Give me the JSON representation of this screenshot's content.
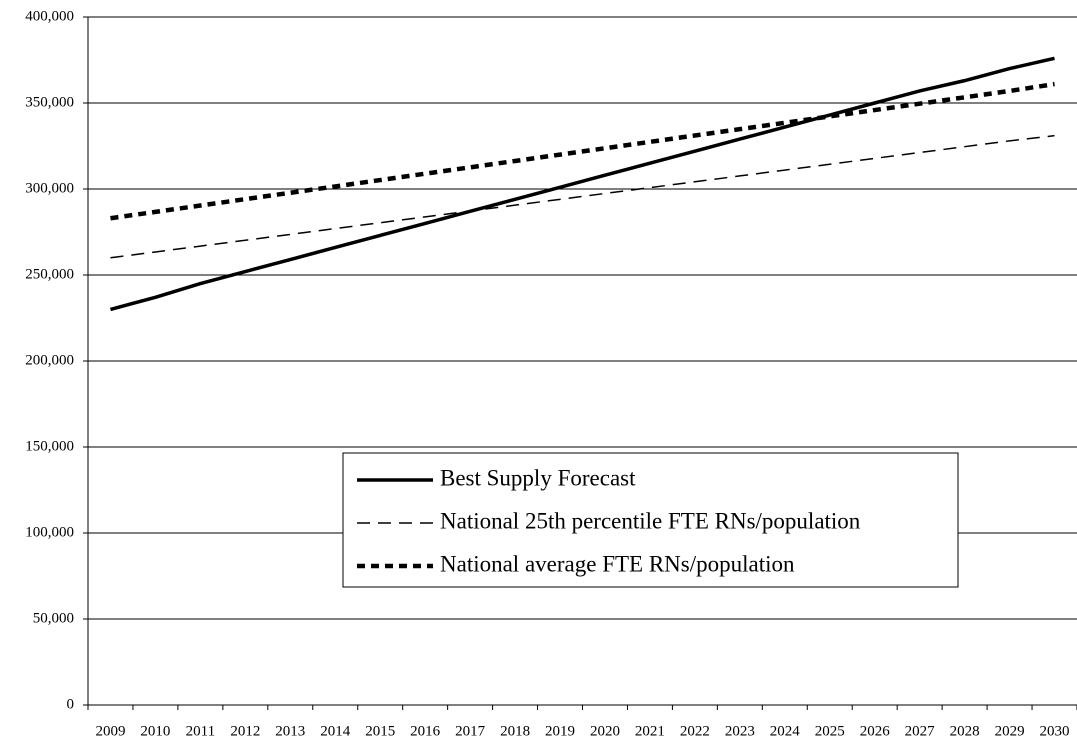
{
  "chart_data": {
    "type": "line",
    "categories": [
      "2009",
      "2010",
      "2011",
      "2012",
      "2013",
      "2014",
      "2015",
      "2016",
      "2017",
      "2018",
      "2019",
      "2020",
      "2021",
      "2022",
      "2023",
      "2024",
      "2025",
      "2026",
      "2027",
      "2028",
      "2029",
      "2030"
    ],
    "series": [
      {
        "name": "Best Supply Forecast",
        "color": "#000000",
        "values": [
          230000,
          237000,
          245000,
          252000,
          259000,
          266000,
          273000,
          280000,
          287000,
          294000,
          301000,
          308000,
          315000,
          322000,
          329000,
          336000,
          343000,
          350000,
          357000,
          363000,
          370000,
          376000
        ]
      },
      {
        "name": "National 25th percentile FTE RNs/population",
        "color": "#000000",
        "values": [
          260000,
          263400,
          266800,
          270200,
          273600,
          277000,
          280400,
          283800,
          287200,
          290600,
          294000,
          297400,
          300800,
          304200,
          307600,
          311000,
          314400,
          317800,
          321200,
          324600,
          328000,
          331000
        ]
      },
      {
        "name": "National average FTE RNs/population",
        "color": "#000000",
        "values": [
          283000,
          286700,
          290400,
          294100,
          297800,
          301500,
          305200,
          308900,
          312600,
          316300,
          320000,
          323700,
          327400,
          331100,
          334800,
          338500,
          342200,
          345900,
          349600,
          353300,
          357000,
          361000
        ]
      }
    ],
    "ylim": [
      0,
      400000
    ],
    "yticks": [
      0,
      {
        "value": 50000,
        "label": "50,000"
      },
      {
        "value": 100000,
        "label": "100,000"
      },
      {
        "value": 150000,
        "label": "150,000"
      },
      {
        "value": 200000,
        "label": "200,000"
      },
      {
        "value": 250000,
        "label": "250,000"
      },
      {
        "value": 300000,
        "label": "300,000"
      },
      {
        "value": 350000,
        "label": "350,000"
      },
      {
        "value": 400000,
        "label": "400,000"
      }
    ],
    "grid": true
  }
}
